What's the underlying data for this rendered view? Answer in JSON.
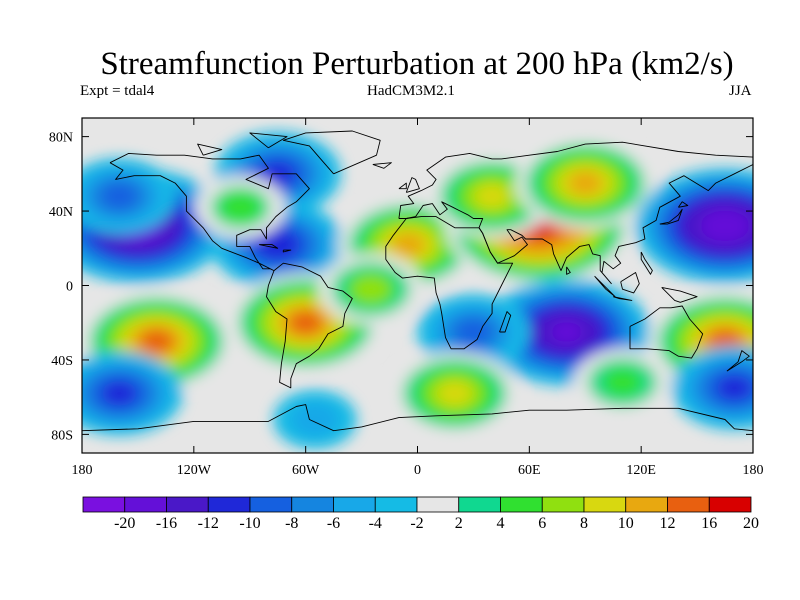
{
  "map": {
    "title": "Streamfunction Perturbation at 200 hPa (km2/s)",
    "subtitle_left": "Expt = tdal4",
    "subtitle_center": "HadCM3M2.1",
    "subtitle_right": "JJA",
    "x_ticks": [
      "180",
      "120W",
      "60W",
      "0",
      "60E",
      "120E",
      "180"
    ],
    "y_ticks": [
      "80N",
      "40N",
      "0",
      "40S",
      "80S"
    ],
    "x_tick_values": [
      -180,
      -120,
      -60,
      0,
      60,
      120,
      180
    ],
    "y_tick_values": [
      80,
      40,
      0,
      -40,
      -80
    ],
    "lon_range": [
      -180,
      180
    ],
    "lat_range": [
      -90,
      90
    ],
    "colorbar_labels": [
      "-20",
      "-16",
      "-12",
      "-10",
      "-8",
      "-6",
      "-4",
      "-2",
      "2",
      "4",
      "6",
      "8",
      "10",
      "12",
      "16",
      "20"
    ],
    "colorbar_colors": [
      "#7a10e0",
      "#6410d8",
      "#4a18c8",
      "#1f28d8",
      "#1560e0",
      "#1585e0",
      "#18a8e8",
      "#15bbe5",
      "#e6e6e6",
      "#10d890",
      "#30e030",
      "#90e010",
      "#d8d810",
      "#e8a810",
      "#e86010",
      "#d80000"
    ],
    "features": [
      {
        "lon": -150,
        "lat": 32,
        "value": -18
      },
      {
        "lon": -160,
        "lat": 48,
        "value": -8
      },
      {
        "lon": -75,
        "lat": 60,
        "value": -10
      },
      {
        "lon": -75,
        "lat": 22,
        "value": -11
      },
      {
        "lon": -95,
        "lat": 42,
        "value": 5
      },
      {
        "lon": -5,
        "lat": 22,
        "value": 12
      },
      {
        "lon": 65,
        "lat": 32,
        "value": 19
      },
      {
        "lon": 40,
        "lat": 48,
        "value": 10
      },
      {
        "lon": 90,
        "lat": 55,
        "value": 12
      },
      {
        "lon": 165,
        "lat": 32,
        "value": -18
      },
      {
        "lon": -140,
        "lat": -30,
        "value": 14
      },
      {
        "lon": -60,
        "lat": -20,
        "value": 14
      },
      {
        "lon": -25,
        "lat": -2,
        "value": 7
      },
      {
        "lon": 80,
        "lat": -25,
        "value": -16
      },
      {
        "lon": 30,
        "lat": -25,
        "value": -8
      },
      {
        "lon": 165,
        "lat": -30,
        "value": 14
      },
      {
        "lon": -160,
        "lat": -58,
        "value": -10
      },
      {
        "lon": 170,
        "lat": -55,
        "value": -10
      },
      {
        "lon": 20,
        "lat": -58,
        "value": 10
      },
      {
        "lon": 110,
        "lat": -52,
        "value": 6
      },
      {
        "lon": -55,
        "lat": -72,
        "value": -4
      }
    ],
    "coastlines": [
      [
        [
          -165,
          66
        ],
        [
          -155,
          71
        ],
        [
          -140,
          70
        ],
        [
          -125,
          70
        ],
        [
          -110,
          68
        ],
        [
          -95,
          68
        ],
        [
          -85,
          70
        ],
        [
          -80,
          63
        ],
        [
          -92,
          57
        ],
        [
          -80,
          52
        ],
        [
          -78,
          60
        ],
        [
          -65,
          60
        ],
        [
          -58,
          52
        ],
        [
          -65,
          45
        ],
        [
          -70,
          42
        ],
        [
          -76,
          37
        ],
        [
          -81,
          31
        ],
        [
          -81,
          25
        ],
        [
          -84,
          30
        ],
        [
          -90,
          30
        ],
        [
          -97,
          27
        ],
        [
          -97,
          21
        ],
        [
          -90,
          21
        ],
        [
          -87,
          15
        ],
        [
          -83,
          9
        ],
        [
          -79,
          9
        ],
        [
          -77,
          8
        ],
        [
          -85,
          12
        ],
        [
          -92,
          15
        ],
        [
          -105,
          20
        ],
        [
          -110,
          24
        ],
        [
          -115,
          31
        ],
        [
          -118,
          34
        ],
        [
          -124,
          40
        ],
        [
          -124,
          48
        ],
        [
          -130,
          55
        ],
        [
          -138,
          59
        ],
        [
          -152,
          59
        ],
        [
          -162,
          57
        ],
        [
          -158,
          62
        ],
        [
          -165,
          66
        ]
      ],
      [
        [
          -77,
          8
        ],
        [
          -72,
          12
        ],
        [
          -62,
          10
        ],
        [
          -52,
          5
        ],
        [
          -48,
          -1
        ],
        [
          -40,
          -3
        ],
        [
          -35,
          -7
        ],
        [
          -39,
          -15
        ],
        [
          -40,
          -22
        ],
        [
          -48,
          -26
        ],
        [
          -53,
          -34
        ],
        [
          -58,
          -38
        ],
        [
          -65,
          -42
        ],
        [
          -68,
          -50
        ],
        [
          -68,
          -55
        ],
        [
          -74,
          -52
        ],
        [
          -73,
          -42
        ],
        [
          -71,
          -30
        ],
        [
          -70,
          -18
        ],
        [
          -76,
          -14
        ],
        [
          -81,
          -6
        ],
        [
          -80,
          0
        ],
        [
          -77,
          8
        ]
      ],
      [
        [
          -45,
          60
        ],
        [
          -22,
          70
        ],
        [
          -20,
          78
        ],
        [
          -35,
          83
        ],
        [
          -60,
          82
        ],
        [
          -72,
          78
        ],
        [
          -58,
          75
        ],
        [
          -52,
          68
        ],
        [
          -45,
          60
        ]
      ],
      [
        [
          -10,
          36
        ],
        [
          -9,
          43
        ],
        [
          -2,
          44
        ],
        [
          -5,
          48
        ],
        [
          2,
          51
        ],
        [
          8,
          54
        ],
        [
          10,
          57
        ],
        [
          5,
          62
        ],
        [
          15,
          69
        ],
        [
          28,
          71
        ],
        [
          40,
          68
        ],
        [
          45,
          68
        ],
        [
          60,
          70
        ],
        [
          75,
          72
        ],
        [
          90,
          76
        ],
        [
          110,
          77
        ],
        [
          140,
          72
        ],
        [
          160,
          70
        ],
        [
          180,
          69
        ],
        [
          180,
          65
        ],
        [
          170,
          60
        ],
        [
          160,
          55
        ],
        [
          156,
          51
        ],
        [
          143,
          59
        ],
        [
          135,
          55
        ],
        [
          141,
          48
        ],
        [
          130,
          42
        ],
        [
          128,
          35
        ],
        [
          121,
          31
        ],
        [
          122,
          25
        ],
        [
          117,
          23
        ],
        [
          108,
          21
        ],
        [
          106,
          16
        ],
        [
          109,
          12
        ],
        [
          105,
          9
        ],
        [
          100,
          13
        ],
        [
          99,
          7
        ],
        [
          104,
          1
        ],
        [
          98,
          8
        ],
        [
          98,
          16
        ],
        [
          94,
          17
        ],
        [
          92,
          22
        ],
        [
          87,
          21
        ],
        [
          80,
          15
        ],
        [
          77,
          8
        ],
        [
          73,
          17
        ],
        [
          72,
          22
        ],
        [
          67,
          25
        ],
        [
          58,
          25
        ],
        [
          56,
          27
        ],
        [
          50,
          30
        ],
        [
          48,
          30
        ],
        [
          52,
          24
        ],
        [
          56,
          26
        ],
        [
          59,
          22
        ],
        [
          52,
          16
        ],
        [
          43,
          12
        ],
        [
          39,
          18
        ],
        [
          35,
          28
        ],
        [
          33,
          31
        ],
        [
          35,
          36
        ],
        [
          30,
          36
        ],
        [
          27,
          38
        ],
        [
          23,
          40
        ],
        [
          19,
          42
        ],
        [
          13,
          45
        ],
        [
          16,
          41
        ],
        [
          12,
          38
        ],
        [
          8,
          44
        ],
        [
          3,
          43
        ],
        [
          -1,
          37
        ],
        [
          -6,
          36
        ],
        [
          -10,
          36
        ]
      ],
      [
        [
          -6,
          36
        ],
        [
          -13,
          27
        ],
        [
          -17,
          21
        ],
        [
          -17,
          14
        ],
        [
          -12,
          7
        ],
        [
          -8,
          4
        ],
        [
          0,
          5
        ],
        [
          9,
          4
        ],
        [
          10,
          -4
        ],
        [
          12,
          -10
        ],
        [
          13,
          -15
        ],
        [
          15,
          -28
        ],
        [
          18,
          -34
        ],
        [
          25,
          -34
        ],
        [
          32,
          -29
        ],
        [
          35,
          -22
        ],
        [
          40,
          -15
        ],
        [
          40,
          -10
        ],
        [
          45,
          0
        ],
        [
          51,
          12
        ],
        [
          43,
          12
        ],
        [
          39,
          18
        ],
        [
          35,
          28
        ],
        [
          33,
          31
        ],
        [
          20,
          31
        ],
        [
          10,
          37
        ],
        [
          2,
          37
        ],
        [
          -6,
          36
        ]
      ],
      [
        [
          44,
          -25
        ],
        [
          48,
          -14
        ],
        [
          50,
          -16
        ],
        [
          47,
          -25
        ],
        [
          44,
          -25
        ]
      ],
      [
        [
          114,
          -22
        ],
        [
          114,
          -34
        ],
        [
          123,
          -34
        ],
        [
          135,
          -35
        ],
        [
          140,
          -38
        ],
        [
          147,
          -39
        ],
        [
          150,
          -34
        ],
        [
          153,
          -26
        ],
        [
          146,
          -18
        ],
        [
          142,
          -11
        ],
        [
          136,
          -12
        ],
        [
          130,
          -12
        ],
        [
          122,
          -18
        ],
        [
          114,
          -22
        ]
      ],
      [
        [
          -6,
          50
        ],
        [
          -3,
          58
        ],
        [
          -1,
          57
        ],
        [
          1,
          52
        ],
        [
          -6,
          50
        ]
      ],
      [
        [
          -10,
          52
        ],
        [
          -6,
          55
        ],
        [
          -6,
          52
        ],
        [
          -10,
          52
        ]
      ],
      [
        [
          130,
          33
        ],
        [
          135,
          34
        ],
        [
          140,
          38
        ],
        [
          142,
          41
        ],
        [
          140,
          35
        ],
        [
          134,
          33
        ],
        [
          130,
          33
        ]
      ],
      [
        [
          140,
          42
        ],
        [
          145,
          43
        ],
        [
          142,
          45
        ],
        [
          140,
          42
        ]
      ],
      [
        [
          95,
          5
        ],
        [
          103,
          -3
        ],
        [
          106,
          -6
        ],
        [
          101,
          -2
        ],
        [
          95,
          5
        ]
      ],
      [
        [
          105,
          -6
        ],
        [
          115,
          -8
        ],
        [
          108,
          -7
        ],
        [
          105,
          -6
        ]
      ],
      [
        [
          109,
          2
        ],
        [
          117,
          7
        ],
        [
          119,
          1
        ],
        [
          116,
          -4
        ],
        [
          110,
          -2
        ],
        [
          109,
          2
        ]
      ],
      [
        [
          131,
          -1
        ],
        [
          141,
          -3
        ],
        [
          150,
          -6
        ],
        [
          141,
          -9
        ],
        [
          138,
          -8
        ],
        [
          131,
          -1
        ]
      ],
      [
        [
          120,
          18
        ],
        [
          122,
          14
        ],
        [
          126,
          8
        ],
        [
          125,
          6
        ],
        [
          120,
          14
        ],
        [
          120,
          18
        ]
      ],
      [
        [
          80,
          10
        ],
        [
          82,
          7
        ],
        [
          80,
          6
        ],
        [
          80,
          10
        ]
      ],
      [
        [
          -85,
          22
        ],
        [
          -75,
          20
        ],
        [
          -78,
          22
        ],
        [
          -85,
          22
        ]
      ],
      [
        [
          -72,
          19
        ],
        [
          -68,
          19
        ],
        [
          -72,
          18
        ],
        [
          -72,
          19
        ]
      ],
      [
        [
          -24,
          65
        ],
        [
          -14,
          66
        ],
        [
          -18,
          63
        ],
        [
          -24,
          65
        ]
      ],
      [
        [
          -180,
          -78
        ],
        [
          -150,
          -77
        ],
        [
          -120,
          -73
        ],
        [
          -100,
          -73
        ],
        [
          -80,
          -73
        ],
        [
          -65,
          -65
        ],
        [
          -60,
          -64
        ],
        [
          -58,
          -72
        ],
        [
          -45,
          -78
        ],
        [
          -30,
          -76
        ],
        [
          -10,
          -71
        ],
        [
          10,
          -70
        ],
        [
          40,
          -69
        ],
        [
          60,
          -67
        ],
        [
          80,
          -67
        ],
        [
          110,
          -66
        ],
        [
          140,
          -66
        ],
        [
          165,
          -72
        ],
        [
          170,
          -77
        ],
        [
          180,
          -78
        ]
      ],
      [
        [
          166,
          -46
        ],
        [
          174,
          -41
        ],
        [
          178,
          -38
        ],
        [
          174,
          -35
        ],
        [
          172,
          -41
        ],
        [
          166,
          -46
        ]
      ],
      [
        [
          -80,
          74
        ],
        [
          -70,
          80
        ],
        [
          -90,
          82
        ],
        [
          -80,
          74
        ]
      ],
      [
        [
          -115,
          70
        ],
        [
          -105,
          73
        ],
        [
          -118,
          76
        ],
        [
          -115,
          70
        ]
      ]
    ]
  }
}
